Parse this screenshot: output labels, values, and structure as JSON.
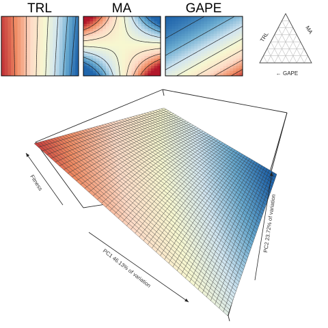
{
  "chart_data": [
    {
      "type": "heatmap",
      "name": "trl-contour-panel",
      "title": "TRL",
      "palette": [
        "#b2182b",
        "#ef8a62",
        "#fddbc7",
        "#f7f7d0",
        "#d1e5f0",
        "#67a9cf",
        "#2166ac"
      ],
      "description_values": "gradient increasing left (red/high) to right (blue/low)"
    },
    {
      "type": "heatmap",
      "name": "ma-contour-panel",
      "title": "MA",
      "palette": [
        "#b2182b",
        "#ef8a62",
        "#fddbc7",
        "#f7f7d0",
        "#d1e5f0",
        "#67a9cf",
        "#2166ac"
      ]
    },
    {
      "type": "heatmap",
      "name": "gape-contour-panel",
      "title": "GAPE",
      "palette": [
        "#b2182b",
        "#ef8a62",
        "#fddbc7",
        "#f7f7d0",
        "#d1e5f0",
        "#67a9cf",
        "#2166ac"
      ]
    },
    {
      "type": "ternary-legend",
      "labels": {
        "left": "TRL",
        "right": "MA",
        "bottom": "← GAPE"
      }
    },
    {
      "type": "surface",
      "axes": {
        "x": "PC1 46.13% of variation",
        "y": "PC2 23.72% of variation",
        "z": "Fitness"
      },
      "colors": {
        "high": "#b2182b",
        "mid": "#f7e4a8",
        "low": "#2166ac"
      }
    }
  ],
  "colors": {
    "mesh_line": "#222222",
    "box_line": "#000000"
  }
}
